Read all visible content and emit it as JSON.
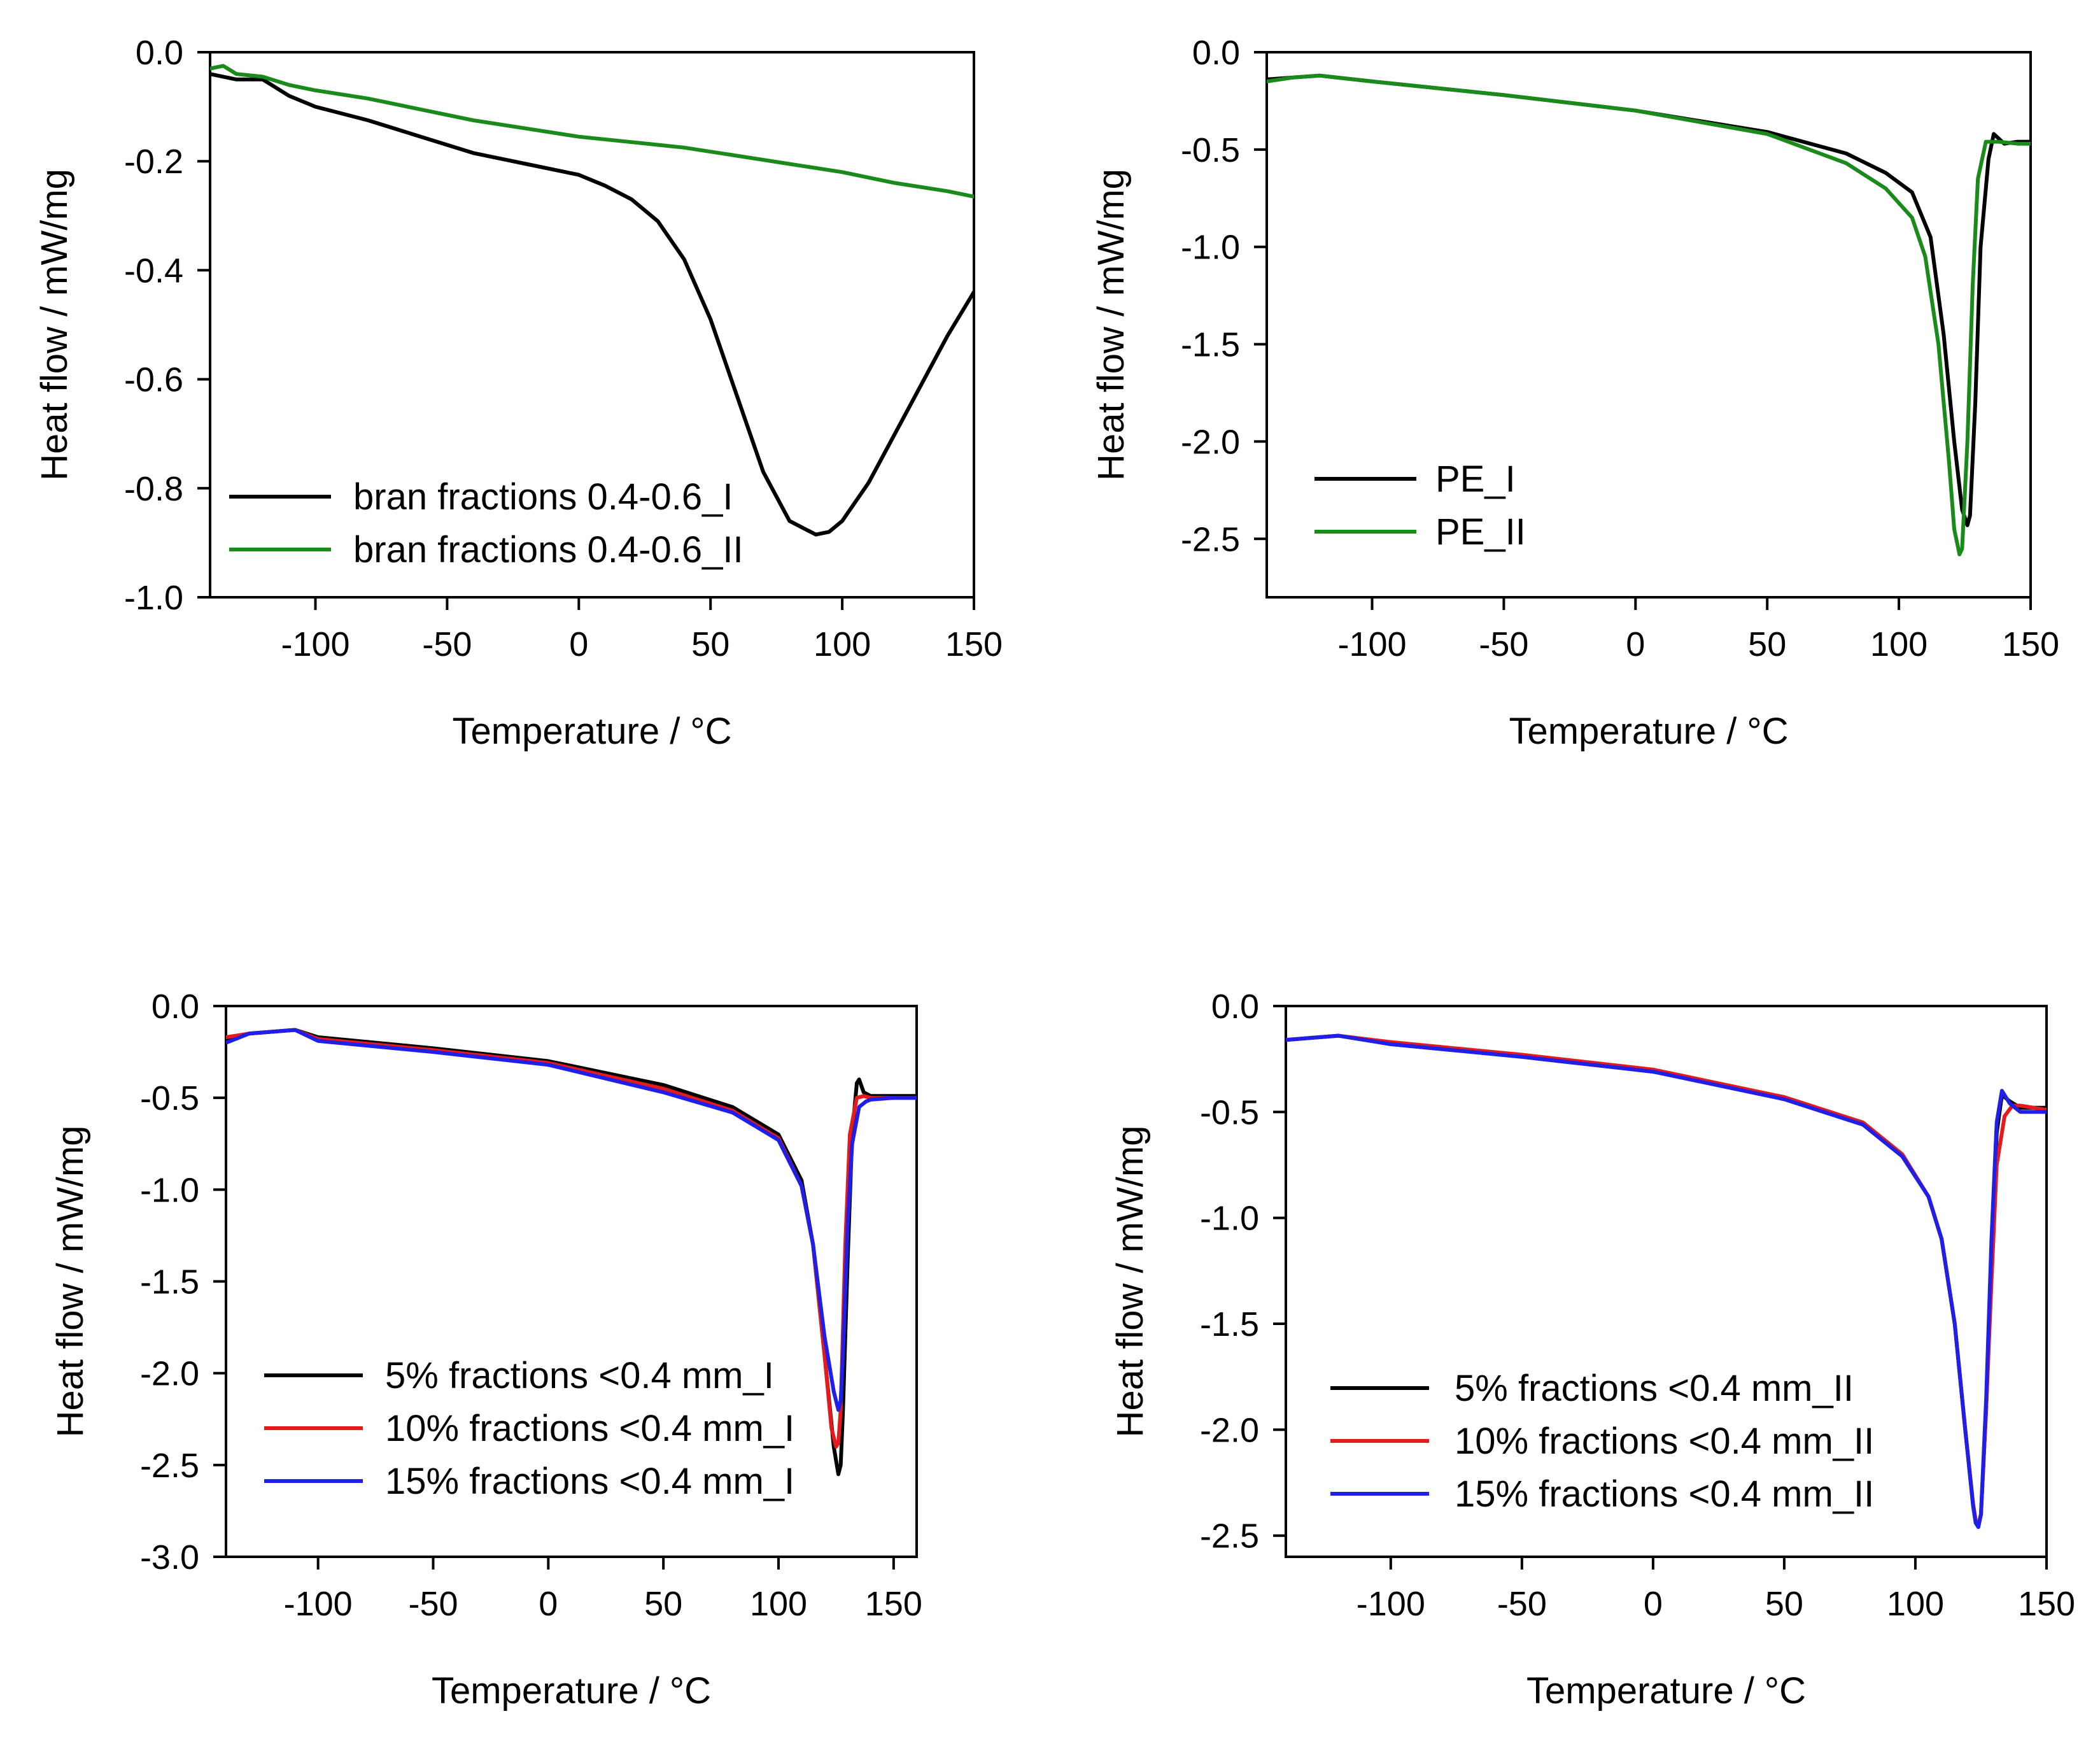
{
  "chart_data": [
    {
      "id": "tl",
      "type": "line",
      "title": "",
      "xlabel": "Temperature / °C",
      "ylabel": "Heat flow / mW/mg",
      "xlim": [
        -140,
        150
      ],
      "ylim": [
        -1.0,
        0.0
      ],
      "xticks": [
        -100,
        -50,
        0,
        50,
        100,
        150
      ],
      "xtick_labels": [
        "-100",
        "-50",
        "0",
        "50",
        "100",
        "150"
      ],
      "yticks": [
        0.0,
        -0.2,
        -0.4,
        -0.6,
        -0.8,
        -1.0
      ],
      "ytick_labels": [
        "0.0",
        "-0.2",
        "-0.4",
        "-0.6",
        "-0.8",
        "-1.0"
      ],
      "grid": false,
      "legend_position": "bottom-left",
      "series": [
        {
          "name": "bran fractions 0.4-0.6_I",
          "color": "#000000",
          "x": [
            -140,
            -130,
            -120,
            -110,
            -100,
            -80,
            -60,
            -40,
            -20,
            0,
            10,
            20,
            30,
            40,
            50,
            60,
            70,
            80,
            90,
            95,
            100,
            110,
            120,
            130,
            140,
            150
          ],
          "y": [
            -0.04,
            -0.05,
            -0.05,
            -0.08,
            -0.1,
            -0.125,
            -0.155,
            -0.185,
            -0.205,
            -0.225,
            -0.245,
            -0.27,
            -0.31,
            -0.38,
            -0.49,
            -0.63,
            -0.77,
            -0.86,
            -0.885,
            -0.88,
            -0.86,
            -0.79,
            -0.7,
            -0.61,
            -0.52,
            -0.44
          ]
        },
        {
          "name": "bran fractions 0.4-0.6_II",
          "color": "#1a8a1a",
          "x": [
            -140,
            -135,
            -130,
            -120,
            -110,
            -100,
            -80,
            -60,
            -40,
            -20,
            0,
            20,
            40,
            60,
            80,
            100,
            120,
            140,
            150
          ],
          "y": [
            -0.03,
            -0.025,
            -0.04,
            -0.045,
            -0.06,
            -0.07,
            -0.085,
            -0.105,
            -0.125,
            -0.14,
            -0.155,
            -0.165,
            -0.175,
            -0.19,
            -0.205,
            -0.22,
            -0.24,
            -0.255,
            -0.265
          ]
        }
      ]
    },
    {
      "id": "tr",
      "type": "line",
      "title": "",
      "xlabel": "Temperature / °C",
      "ylabel": "Heat flow / mW/mg",
      "xlim": [
        -140,
        150
      ],
      "ylim": [
        -2.8,
        0.0
      ],
      "xticks": [
        -100,
        -50,
        0,
        50,
        100,
        150
      ],
      "xtick_labels": [
        "-100",
        "-50",
        "0",
        "50",
        "100",
        "150"
      ],
      "yticks": [
        0.0,
        -0.5,
        -1.0,
        -1.5,
        -2.0,
        -2.5
      ],
      "ytick_labels": [
        "0.0",
        "-0.5",
        "-1.0",
        "-1.5",
        "-2.0",
        "-2.5"
      ],
      "grid": false,
      "legend_position": "bottom-left",
      "series": [
        {
          "name": "PE_I",
          "color": "#000000",
          "x": [
            -140,
            -130,
            -120,
            -100,
            -50,
            0,
            50,
            80,
            95,
            105,
            112,
            117,
            121,
            124,
            126,
            127,
            129,
            131,
            134,
            136,
            140,
            145,
            150
          ],
          "y": [
            -0.14,
            -0.13,
            -0.12,
            -0.15,
            -0.22,
            -0.3,
            -0.41,
            -0.52,
            -0.62,
            -0.72,
            -0.95,
            -1.45,
            -2.0,
            -2.35,
            -2.43,
            -2.38,
            -1.8,
            -1.0,
            -0.55,
            -0.42,
            -0.47,
            -0.46,
            -0.46
          ]
        },
        {
          "name": "PE_II",
          "color": "#1a8a1a",
          "x": [
            -140,
            -130,
            -120,
            -100,
            -50,
            0,
            50,
            80,
            95,
            105,
            110,
            115,
            119,
            121,
            123,
            124,
            126,
            128,
            130,
            133,
            138,
            145,
            150
          ],
          "y": [
            -0.15,
            -0.13,
            -0.12,
            -0.15,
            -0.22,
            -0.3,
            -0.42,
            -0.57,
            -0.7,
            -0.85,
            -1.05,
            -1.5,
            -2.1,
            -2.45,
            -2.58,
            -2.55,
            -2.0,
            -1.2,
            -0.65,
            -0.46,
            -0.46,
            -0.47,
            -0.47
          ]
        }
      ]
    },
    {
      "id": "bl",
      "type": "line",
      "title": "",
      "xlabel": "Temperature / °C",
      "ylabel": "Heat flow / mW/mg",
      "xlim": [
        -140,
        160
      ],
      "ylim": [
        -3.0,
        0.0
      ],
      "xticks": [
        -100,
        -50,
        0,
        50,
        100,
        150
      ],
      "xtick_labels": [
        "-100",
        "-50",
        "0",
        "50",
        "100",
        "150"
      ],
      "yticks": [
        0.0,
        -0.5,
        -1.0,
        -1.5,
        -2.0,
        -2.5,
        -3.0
      ],
      "ytick_labels": [
        "0.0",
        "-0.5",
        "-1.0",
        "-1.5",
        "-2.0",
        "-2.5",
        "-3.0"
      ],
      "grid": false,
      "legend_position": "bottom-left",
      "series": [
        {
          "name": "5% fractions <0.4 mm_I",
          "color": "#000000",
          "x": [
            -140,
            -130,
            -110,
            -100,
            -50,
            0,
            50,
            80,
            100,
            110,
            115,
            120,
            124,
            126,
            127,
            128,
            130,
            132,
            134,
            135,
            137,
            140,
            150,
            160
          ],
          "y": [
            -0.18,
            -0.15,
            -0.13,
            -0.17,
            -0.23,
            -0.3,
            -0.43,
            -0.55,
            -0.7,
            -0.95,
            -1.3,
            -1.9,
            -2.4,
            -2.55,
            -2.5,
            -2.2,
            -1.4,
            -0.7,
            -0.42,
            -0.4,
            -0.47,
            -0.49,
            -0.49,
            -0.49
          ]
        },
        {
          "name": "10% fractions <0.4 mm_I",
          "color": "#e41a1c",
          "x": [
            -140,
            -130,
            -110,
            -100,
            -50,
            0,
            50,
            80,
            100,
            110,
            115,
            120,
            123,
            125,
            126,
            127,
            129,
            131,
            134,
            137,
            140,
            150,
            160
          ],
          "y": [
            -0.17,
            -0.15,
            -0.13,
            -0.18,
            -0.24,
            -0.31,
            -0.45,
            -0.57,
            -0.72,
            -0.98,
            -1.3,
            -1.9,
            -2.3,
            -2.4,
            -2.38,
            -2.2,
            -1.3,
            -0.7,
            -0.5,
            -0.49,
            -0.5,
            -0.5,
            -0.5
          ]
        },
        {
          "name": "15% fractions <0.4 mm_I",
          "color": "#1f1fe8",
          "x": [
            -140,
            -130,
            -110,
            -100,
            -50,
            0,
            50,
            80,
            100,
            110,
            115,
            120,
            124,
            126,
            127,
            128,
            130,
            132,
            135,
            138,
            140,
            150,
            160
          ],
          "y": [
            -0.2,
            -0.15,
            -0.13,
            -0.19,
            -0.25,
            -0.32,
            -0.47,
            -0.58,
            -0.73,
            -0.98,
            -1.3,
            -1.8,
            -2.1,
            -2.2,
            -2.15,
            -1.9,
            -1.2,
            -0.75,
            -0.55,
            -0.52,
            -0.51,
            -0.5,
            -0.5
          ]
        }
      ]
    },
    {
      "id": "br",
      "type": "line",
      "title": "",
      "xlabel": "Temperature / °C",
      "ylabel": "Heat flow / mW/mg",
      "xlim": [
        -140,
        150
      ],
      "ylim": [
        -2.6,
        0.0
      ],
      "xticks": [
        -100,
        -50,
        0,
        50,
        100,
        150
      ],
      "xtick_labels": [
        "-100",
        "-50",
        "0",
        "50",
        "100",
        "150"
      ],
      "yticks": [
        0.0,
        -0.5,
        -1.0,
        -1.5,
        -2.0,
        -2.5
      ],
      "ytick_labels": [
        "0.0",
        "-0.5",
        "-1.0",
        "-1.5",
        "-2.0",
        "-2.5"
      ],
      "grid": false,
      "legend_position": "bottom-right",
      "series": [
        {
          "name": "5% fractions <0.4 mm_II",
          "color": "#000000",
          "x": [
            -140,
            -130,
            -120,
            -100,
            -50,
            0,
            50,
            80,
            95,
            105,
            110,
            115,
            119,
            122,
            123,
            124,
            125,
            127,
            129,
            131,
            133,
            136,
            140,
            150
          ],
          "y": [
            -0.16,
            -0.15,
            -0.14,
            -0.18,
            -0.24,
            -0.31,
            -0.43,
            -0.55,
            -0.7,
            -0.9,
            -1.1,
            -1.5,
            -2.0,
            -2.35,
            -2.43,
            -2.45,
            -2.4,
            -1.9,
            -1.2,
            -0.6,
            -0.42,
            -0.45,
            -0.48,
            -0.48
          ]
        },
        {
          "name": "10% fractions <0.4 mm_II",
          "color": "#e41a1c",
          "x": [
            -140,
            -130,
            -120,
            -100,
            -50,
            0,
            50,
            80,
            95,
            105,
            110,
            115,
            119,
            122,
            123,
            124,
            125,
            127,
            129,
            131,
            134,
            137,
            140,
            150
          ],
          "y": [
            -0.16,
            -0.15,
            -0.14,
            -0.17,
            -0.23,
            -0.3,
            -0.43,
            -0.55,
            -0.7,
            -0.9,
            -1.1,
            -1.5,
            -2.0,
            -2.35,
            -2.43,
            -2.45,
            -2.4,
            -1.9,
            -1.3,
            -0.75,
            -0.52,
            -0.47,
            -0.47,
            -0.49
          ]
        },
        {
          "name": "15% fractions <0.4 mm_II",
          "color": "#1f1fe8",
          "x": [
            -140,
            -130,
            -120,
            -100,
            -50,
            0,
            50,
            80,
            95,
            105,
            110,
            115,
            119,
            122,
            123,
            124,
            125,
            127,
            129,
            131,
            133,
            136,
            140,
            150
          ],
          "y": [
            -0.16,
            -0.15,
            -0.14,
            -0.18,
            -0.24,
            -0.31,
            -0.44,
            -0.56,
            -0.71,
            -0.9,
            -1.1,
            -1.5,
            -2.0,
            -2.36,
            -2.44,
            -2.46,
            -2.4,
            -1.85,
            -1.1,
            -0.55,
            -0.4,
            -0.46,
            -0.5,
            -0.5
          ]
        }
      ]
    }
  ]
}
